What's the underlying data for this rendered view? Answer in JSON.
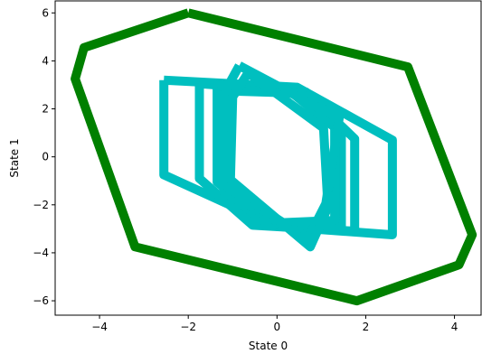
{
  "chart_data": {
    "type": "line",
    "title": "",
    "xlabel": "State 0",
    "ylabel": "State 1",
    "xlim": [
      -5.0,
      4.6
    ],
    "ylim": [
      -6.6,
      6.5
    ],
    "grid": false,
    "x_ticks": [
      -4,
      -2,
      0,
      2,
      4
    ],
    "y_ticks": [
      -6,
      -4,
      -2,
      0,
      2,
      4,
      6
    ],
    "series": [
      {
        "color": "#008000",
        "points": [
          [
            -2.0,
            6.0
          ],
          [
            2.95,
            3.75
          ],
          [
            4.4,
            -3.25
          ],
          [
            4.1,
            -4.5
          ],
          [
            1.8,
            -6.0
          ],
          [
            -3.2,
            -3.75
          ],
          [
            -4.55,
            3.25
          ],
          [
            -4.35,
            4.55
          ],
          [
            -2.0,
            6.0
          ]
        ]
      },
      {
        "color": "#00bfbf",
        "points": [
          [
            -2.55,
            3.2
          ],
          [
            0.45,
            2.9
          ],
          [
            2.6,
            0.7
          ],
          [
            2.6,
            -3.25
          ],
          [
            0.0,
            -2.9
          ],
          [
            -2.55,
            -0.75
          ],
          [
            -2.55,
            3.2
          ]
        ]
      },
      {
        "color": "#00bfbf",
        "points": [
          [
            -1.75,
            3.05
          ],
          [
            0.65,
            2.7
          ],
          [
            1.75,
            0.75
          ],
          [
            1.75,
            -3.1
          ],
          [
            -0.55,
            -2.85
          ],
          [
            -1.75,
            -0.9
          ],
          [
            -1.75,
            3.05
          ]
        ]
      },
      {
        "color": "#00bfbf",
        "points": [
          [
            -1.35,
            2.85
          ],
          [
            0.35,
            2.65
          ],
          [
            1.45,
            1.0
          ],
          [
            1.45,
            -2.9
          ],
          [
            -0.25,
            -2.75
          ],
          [
            -1.35,
            -1.05
          ],
          [
            -1.35,
            2.85
          ]
        ]
      },
      {
        "color": "#00bfbf",
        "points": [
          [
            -1.2,
            2.75
          ],
          [
            0.55,
            2.65
          ],
          [
            1.3,
            1.4
          ],
          [
            1.3,
            -2.65
          ],
          [
            0.05,
            -2.75
          ],
          [
            -1.2,
            -1.45
          ],
          [
            -1.2,
            2.75
          ]
        ]
      },
      {
        "color": "#00bfbf",
        "points": [
          [
            -0.85,
            3.8
          ],
          [
            1.4,
            1.6
          ],
          [
            1.1,
            -1.95
          ],
          [
            0.7,
            -3.4
          ],
          [
            -1.1,
            -1.3
          ],
          [
            -1.15,
            2.8
          ],
          [
            -0.85,
            3.8
          ]
        ]
      },
      {
        "color": "#00bfbf",
        "points": [
          [
            -0.65,
            3.5
          ],
          [
            1.05,
            1.2
          ],
          [
            1.15,
            -2.1
          ],
          [
            0.75,
            -3.75
          ],
          [
            -1.05,
            -0.95
          ],
          [
            -1.0,
            2.5
          ],
          [
            -0.65,
            3.5
          ]
        ]
      }
    ]
  }
}
